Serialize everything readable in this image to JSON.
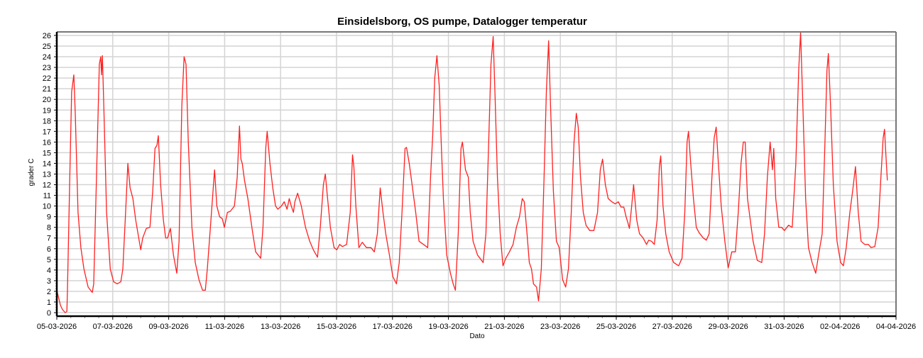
{
  "chart_data": {
    "type": "line",
    "title": "Einsidelsborg, OS pumpe, Datalogger temperatur",
    "xlabel": "Dato",
    "ylabel": "grader C",
    "x_unit": "days since 05-03-2026",
    "xlim": [
      0,
      30
    ],
    "ylim": [
      -0.33,
      26.33
    ],
    "grid": true,
    "x_tick_labels": [
      "05-03-2026",
      "07-03-2026",
      "09-03-2026",
      "11-03-2026",
      "13-03-2026",
      "15-03-2026",
      "17-03-2026",
      "19-03-2026",
      "21-03-2026",
      "23-03-2026",
      "25-03-2026",
      "27-03-2026",
      "29-03-2026",
      "31-03-2026",
      "02-04-2026",
      "04-04-2026"
    ],
    "x_tick_values": [
      0,
      2,
      4,
      6,
      8,
      10,
      12,
      14,
      16,
      18,
      20,
      22,
      24,
      26,
      28,
      30
    ],
    "y_ticks": [
      0,
      1,
      2,
      3,
      4,
      5,
      6,
      7,
      8,
      9,
      10,
      11,
      12,
      13,
      14,
      15,
      16,
      17,
      18,
      19,
      20,
      21,
      22,
      23,
      24,
      25,
      26
    ],
    "series": [
      {
        "name": "temperatur",
        "color": "#ff2020",
        "points": [
          [
            0.0,
            2.1
          ],
          [
            0.13,
            0.7
          ],
          [
            0.2,
            0.3
          ],
          [
            0.3,
            0.0
          ],
          [
            0.36,
            0.1
          ],
          [
            0.38,
            2.1
          ],
          [
            0.46,
            12.1
          ],
          [
            0.53,
            20.7
          ],
          [
            0.61,
            22.3
          ],
          [
            0.66,
            18.7
          ],
          [
            0.76,
            9.4
          ],
          [
            0.86,
            6.1
          ],
          [
            0.97,
            4.1
          ],
          [
            1.12,
            2.4
          ],
          [
            1.27,
            1.9
          ],
          [
            1.32,
            2.7
          ],
          [
            1.42,
            12.7
          ],
          [
            1.52,
            23.3
          ],
          [
            1.57,
            24.0
          ],
          [
            1.6,
            22.3
          ],
          [
            1.63,
            24.1
          ],
          [
            1.68,
            19.4
          ],
          [
            1.78,
            9.4
          ],
          [
            1.91,
            4.1
          ],
          [
            2.03,
            2.9
          ],
          [
            2.16,
            2.7
          ],
          [
            2.29,
            2.9
          ],
          [
            2.36,
            4.1
          ],
          [
            2.46,
            9.4
          ],
          [
            2.54,
            14.0
          ],
          [
            2.62,
            11.7
          ],
          [
            2.72,
            10.7
          ],
          [
            2.82,
            8.7
          ],
          [
            3.0,
            5.9
          ],
          [
            3.07,
            7.0
          ],
          [
            3.2,
            7.9
          ],
          [
            3.33,
            8.0
          ],
          [
            3.43,
            11.4
          ],
          [
            3.51,
            15.4
          ],
          [
            3.58,
            15.7
          ],
          [
            3.63,
            16.6
          ],
          [
            3.71,
            12.0
          ],
          [
            3.81,
            8.7
          ],
          [
            3.89,
            7.0
          ],
          [
            3.96,
            7.0
          ],
          [
            4.06,
            7.9
          ],
          [
            4.17,
            5.4
          ],
          [
            4.29,
            3.7
          ],
          [
            4.37,
            6.7
          ],
          [
            4.47,
            19.4
          ],
          [
            4.55,
            24.0
          ],
          [
            4.62,
            23.3
          ],
          [
            4.7,
            16.0
          ],
          [
            4.83,
            8.0
          ],
          [
            4.95,
            4.7
          ],
          [
            5.08,
            3.1
          ],
          [
            5.21,
            2.1
          ],
          [
            5.31,
            2.1
          ],
          [
            5.38,
            4.1
          ],
          [
            5.51,
            8.7
          ],
          [
            5.64,
            13.4
          ],
          [
            5.72,
            10.0
          ],
          [
            5.82,
            9.0
          ],
          [
            5.92,
            8.8
          ],
          [
            5.99,
            8.0
          ],
          [
            6.1,
            9.4
          ],
          [
            6.2,
            9.5
          ],
          [
            6.35,
            10.0
          ],
          [
            6.45,
            12.7
          ],
          [
            6.53,
            17.5
          ],
          [
            6.58,
            14.4
          ],
          [
            6.63,
            14.0
          ],
          [
            6.71,
            12.4
          ],
          [
            6.83,
            10.7
          ],
          [
            6.99,
            7.7
          ],
          [
            7.11,
            5.7
          ],
          [
            7.29,
            5.1
          ],
          [
            7.37,
            8.0
          ],
          [
            7.47,
            15.4
          ],
          [
            7.52,
            17.0
          ],
          [
            7.62,
            14.0
          ],
          [
            7.72,
            11.7
          ],
          [
            7.82,
            10.0
          ],
          [
            7.9,
            9.7
          ],
          [
            8.03,
            10.0
          ],
          [
            8.13,
            10.4
          ],
          [
            8.23,
            9.7
          ],
          [
            8.31,
            10.7
          ],
          [
            8.38,
            10.0
          ],
          [
            8.46,
            9.4
          ],
          [
            8.51,
            10.4
          ],
          [
            8.61,
            11.2
          ],
          [
            8.74,
            10.0
          ],
          [
            8.89,
            8.0
          ],
          [
            9.04,
            6.7
          ],
          [
            9.17,
            5.9
          ],
          [
            9.32,
            5.2
          ],
          [
            9.42,
            8.0
          ],
          [
            9.53,
            12.0
          ],
          [
            9.6,
            13.0
          ],
          [
            9.68,
            10.7
          ],
          [
            9.78,
            8.0
          ],
          [
            9.91,
            6.1
          ],
          [
            10.01,
            5.9
          ],
          [
            10.11,
            6.4
          ],
          [
            10.21,
            6.2
          ],
          [
            10.36,
            6.4
          ],
          [
            10.49,
            9.4
          ],
          [
            10.57,
            14.8
          ],
          [
            10.62,
            13.7
          ],
          [
            10.69,
            10.0
          ],
          [
            10.8,
            6.1
          ],
          [
            10.92,
            6.6
          ],
          [
            11.07,
            6.1
          ],
          [
            11.23,
            6.1
          ],
          [
            11.35,
            5.7
          ],
          [
            11.46,
            7.4
          ],
          [
            11.56,
            11.7
          ],
          [
            11.66,
            9.4
          ],
          [
            11.76,
            7.4
          ],
          [
            11.89,
            5.4
          ],
          [
            12.01,
            3.4
          ],
          [
            12.14,
            2.7
          ],
          [
            12.24,
            4.7
          ],
          [
            12.34,
            9.4
          ],
          [
            12.45,
            15.4
          ],
          [
            12.5,
            15.5
          ],
          [
            12.6,
            14.0
          ],
          [
            12.7,
            12.0
          ],
          [
            12.83,
            9.4
          ],
          [
            12.95,
            6.7
          ],
          [
            13.11,
            6.4
          ],
          [
            13.26,
            6.1
          ],
          [
            13.36,
            12.7
          ],
          [
            13.44,
            16.7
          ],
          [
            13.51,
            22.0
          ],
          [
            13.59,
            24.1
          ],
          [
            13.67,
            21.3
          ],
          [
            13.74,
            16.0
          ],
          [
            13.82,
            10.7
          ],
          [
            13.94,
            5.4
          ],
          [
            14.07,
            3.7
          ],
          [
            14.17,
            2.7
          ],
          [
            14.25,
            2.1
          ],
          [
            14.35,
            7.4
          ],
          [
            14.45,
            15.4
          ],
          [
            14.5,
            16.0
          ],
          [
            14.61,
            13.4
          ],
          [
            14.71,
            12.7
          ],
          [
            14.78,
            9.4
          ],
          [
            14.88,
            6.7
          ],
          [
            15.04,
            5.4
          ],
          [
            15.24,
            4.7
          ],
          [
            15.34,
            7.4
          ],
          [
            15.44,
            16.0
          ],
          [
            15.52,
            23.3
          ],
          [
            15.6,
            25.9
          ],
          [
            15.67,
            20.0
          ],
          [
            15.75,
            12.7
          ],
          [
            15.85,
            7.4
          ],
          [
            15.95,
            4.4
          ],
          [
            16.05,
            5.1
          ],
          [
            16.18,
            5.7
          ],
          [
            16.31,
            6.4
          ],
          [
            16.43,
            8.0
          ],
          [
            16.54,
            9.0
          ],
          [
            16.64,
            10.7
          ],
          [
            16.71,
            10.4
          ],
          [
            16.81,
            7.4
          ],
          [
            16.89,
            4.7
          ],
          [
            16.97,
            4.1
          ],
          [
            17.04,
            2.7
          ],
          [
            17.15,
            2.4
          ],
          [
            17.22,
            1.1
          ],
          [
            17.32,
            4.1
          ],
          [
            17.42,
            12.7
          ],
          [
            17.5,
            20.7
          ],
          [
            17.58,
            25.5
          ],
          [
            17.65,
            19.4
          ],
          [
            17.75,
            11.4
          ],
          [
            17.86,
            6.7
          ],
          [
            17.96,
            6.1
          ],
          [
            18.08,
            3.1
          ],
          [
            18.19,
            2.4
          ],
          [
            18.29,
            4.1
          ],
          [
            18.39,
            9.4
          ],
          [
            18.49,
            16.0
          ],
          [
            18.57,
            18.7
          ],
          [
            18.64,
            17.4
          ],
          [
            18.72,
            12.7
          ],
          [
            18.82,
            9.4
          ],
          [
            18.92,
            8.2
          ],
          [
            19.05,
            7.7
          ],
          [
            19.2,
            7.7
          ],
          [
            19.33,
            9.4
          ],
          [
            19.43,
            13.4
          ],
          [
            19.51,
            14.4
          ],
          [
            19.61,
            12.0
          ],
          [
            19.71,
            10.7
          ],
          [
            19.84,
            10.4
          ],
          [
            19.96,
            10.2
          ],
          [
            20.07,
            10.4
          ],
          [
            20.17,
            9.9
          ],
          [
            20.27,
            9.9
          ],
          [
            20.35,
            9.0
          ],
          [
            20.42,
            8.4
          ],
          [
            20.47,
            7.9
          ],
          [
            20.55,
            10.0
          ],
          [
            20.62,
            12.0
          ],
          [
            20.73,
            8.7
          ],
          [
            20.83,
            7.4
          ],
          [
            20.96,
            7.0
          ],
          [
            21.08,
            6.4
          ],
          [
            21.16,
            6.8
          ],
          [
            21.26,
            6.7
          ],
          [
            21.36,
            6.4
          ],
          [
            21.46,
            8.7
          ],
          [
            21.54,
            13.7
          ],
          [
            21.59,
            14.7
          ],
          [
            21.67,
            10.0
          ],
          [
            21.77,
            7.4
          ],
          [
            21.89,
            5.7
          ],
          [
            22.05,
            4.7
          ],
          [
            22.23,
            4.4
          ],
          [
            22.35,
            5.1
          ],
          [
            22.45,
            9.4
          ],
          [
            22.53,
            16.0
          ],
          [
            22.58,
            17.0
          ],
          [
            22.66,
            14.0
          ],
          [
            22.76,
            10.7
          ],
          [
            22.86,
            8.0
          ],
          [
            22.96,
            7.5
          ],
          [
            23.11,
            7.0
          ],
          [
            23.22,
            6.8
          ],
          [
            23.32,
            7.4
          ],
          [
            23.42,
            12.7
          ],
          [
            23.5,
            16.4
          ],
          [
            23.57,
            17.4
          ],
          [
            23.65,
            14.0
          ],
          [
            23.75,
            10.0
          ],
          [
            23.88,
            6.7
          ],
          [
            24.0,
            4.2
          ],
          [
            24.13,
            5.7
          ],
          [
            24.26,
            5.7
          ],
          [
            24.36,
            9.4
          ],
          [
            24.46,
            14.0
          ],
          [
            24.54,
            16.0
          ],
          [
            24.61,
            16.0
          ],
          [
            24.69,
            10.7
          ],
          [
            24.79,
            8.7
          ],
          [
            24.89,
            6.7
          ],
          [
            25.04,
            4.9
          ],
          [
            25.2,
            4.7
          ],
          [
            25.3,
            7.4
          ],
          [
            25.4,
            12.7
          ],
          [
            25.5,
            16.0
          ],
          [
            25.58,
            13.4
          ],
          [
            25.63,
            15.4
          ],
          [
            25.7,
            10.7
          ],
          [
            25.81,
            8.0
          ],
          [
            25.91,
            8.0
          ],
          [
            26.01,
            7.7
          ],
          [
            26.16,
            8.2
          ],
          [
            26.29,
            8.0
          ],
          [
            26.42,
            14.0
          ],
          [
            26.52,
            22.7
          ],
          [
            26.59,
            26.3
          ],
          [
            26.67,
            19.4
          ],
          [
            26.77,
            10.7
          ],
          [
            26.87,
            6.1
          ],
          [
            27.0,
            4.7
          ],
          [
            27.13,
            3.7
          ],
          [
            27.23,
            5.4
          ],
          [
            27.36,
            7.4
          ],
          [
            27.46,
            16.0
          ],
          [
            27.53,
            22.7
          ],
          [
            27.58,
            24.3
          ],
          [
            27.66,
            19.4
          ],
          [
            27.76,
            12.0
          ],
          [
            27.89,
            6.7
          ],
          [
            28.02,
            4.7
          ],
          [
            28.12,
            4.4
          ],
          [
            28.22,
            6.1
          ],
          [
            28.35,
            9.4
          ],
          [
            28.45,
            11.4
          ],
          [
            28.55,
            13.7
          ],
          [
            28.65,
            9.4
          ],
          [
            28.75,
            6.7
          ],
          [
            28.88,
            6.4
          ],
          [
            29.01,
            6.4
          ],
          [
            29.11,
            6.1
          ],
          [
            29.24,
            6.2
          ],
          [
            29.36,
            8.0
          ],
          [
            29.46,
            12.7
          ],
          [
            29.54,
            16.4
          ],
          [
            29.59,
            17.2
          ],
          [
            29.64,
            14.7
          ],
          [
            29.69,
            12.4
          ]
        ]
      }
    ]
  }
}
